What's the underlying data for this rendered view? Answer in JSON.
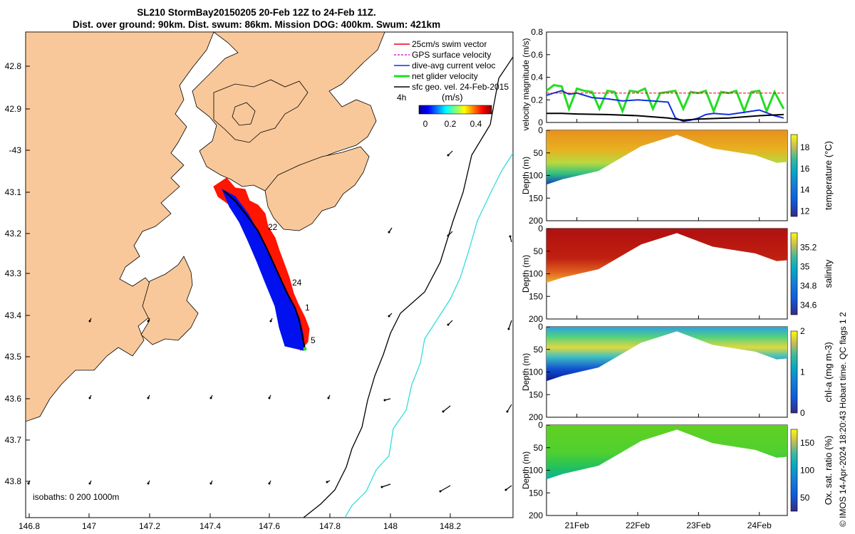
{
  "title_line1": "SL210 StormBay20150205 20-Feb 12Z to 24-Feb 11Z.",
  "title_line2": "Dist. over ground: 90km. Dist. swum: 86km. Mission DOG: 400km. Swum: 421km",
  "map": {
    "lat_ticks": [
      "42.8",
      "42.9",
      "-43",
      "43.1",
      "43.2",
      "43.3",
      "43.4",
      "43.5",
      "43.6",
      "43.7",
      "43.8"
    ],
    "lon_ticks": [
      "146.8",
      "147",
      "147.2",
      "147.4",
      "147.6",
      "147.8",
      "148",
      "148.2"
    ],
    "legend": [
      {
        "label": "25cm/s swim vector",
        "color": "#e8001c"
      },
      {
        "label": "GPS surface velocity",
        "color": "#e020e0"
      },
      {
        "label": "dive-avg current veloc",
        "color": "#1030e0"
      },
      {
        "label": "net glider velocity",
        "color": "#20e020"
      },
      {
        "label": "sfc geo. vel. 24-Feb-2015",
        "color": "#000000"
      }
    ],
    "colorbar_label": "(m/s)",
    "colorbar_ticks": [
      "0",
      "0.2",
      "0.4"
    ],
    "colorbar_tag": "4h",
    "day_labels": [
      "22",
      "24",
      "1",
      "5"
    ],
    "isobaths_label": "isobaths: 0   200  1000m",
    "colors": {
      "land": "#f9c89a",
      "sea": "#ffffff",
      "isobath200": "#000000",
      "isobath1000": "#33dddd",
      "swim": "#ff2000",
      "current": "#0010ee",
      "track": "#000000"
    }
  },
  "chart_data": [
    {
      "type": "line",
      "ylabel": "velocity magnitude (m/s)",
      "ylim": [
        0,
        0.8
      ],
      "yticks": [
        "0",
        "0.2",
        "0.4",
        "0.6",
        "0.8"
      ],
      "x_range_days": [
        "20-Feb 12Z",
        "24-Feb 11Z"
      ],
      "series": [
        {
          "color": "#22dd22",
          "x": [
            20.5,
            20.62,
            20.75,
            20.87,
            21.0,
            21.12,
            21.25,
            21.37,
            21.5,
            21.62,
            21.75,
            21.87,
            22.0,
            22.12,
            22.25,
            22.37,
            22.5,
            22.62,
            22.75,
            22.87,
            23.0,
            23.12,
            23.25,
            23.37,
            23.5,
            23.62,
            23.75,
            23.87,
            24.0,
            24.12,
            24.25,
            24.4
          ],
          "values": [
            0.28,
            0.33,
            0.32,
            0.12,
            0.3,
            0.28,
            0.27,
            0.12,
            0.28,
            0.27,
            0.1,
            0.28,
            0.27,
            0.3,
            0.12,
            0.26,
            0.27,
            0.28,
            0.12,
            0.27,
            0.26,
            0.28,
            0.1,
            0.27,
            0.26,
            0.28,
            0.1,
            0.27,
            0.28,
            0.1,
            0.27,
            0.12
          ]
        },
        {
          "color": "#1030e0",
          "x": [
            20.5,
            20.62,
            20.75,
            20.87,
            21.0,
            21.25,
            21.5,
            21.75,
            22.0,
            22.25,
            22.5,
            22.62,
            22.75,
            22.87,
            23.0,
            23.12,
            23.25,
            23.5,
            23.75,
            24.0,
            24.25,
            24.4
          ],
          "values": [
            0.24,
            0.26,
            0.28,
            0.25,
            0.26,
            0.22,
            0.21,
            0.19,
            0.2,
            0.19,
            0.18,
            0.04,
            0.01,
            0.02,
            0.04,
            0.07,
            0.08,
            0.07,
            0.09,
            0.11,
            0.06,
            0.04
          ]
        },
        {
          "color": "#000000",
          "x": [
            20.5,
            20.75,
            21.0,
            21.5,
            22.0,
            22.5,
            22.75,
            23.0,
            23.5,
            24.0,
            24.4
          ],
          "values": [
            0.08,
            0.08,
            0.075,
            0.07,
            0.06,
            0.04,
            0.02,
            0.03,
            0.04,
            0.06,
            0.07
          ]
        },
        {
          "color": "#e8001c",
          "x": [
            20.5,
            24.4
          ],
          "values": [
            0.26,
            0.26
          ]
        }
      ]
    },
    {
      "type": "heatmap",
      "ylabel": "Depth (m)",
      "ylim": [
        0,
        200
      ],
      "yticks": [
        "0",
        "50",
        "100",
        "150",
        "200"
      ],
      "colorbar_label": "temperature (°C)",
      "colorbar_ticks": [
        "12",
        "14",
        "16",
        "18"
      ],
      "clim": [
        11.5,
        19.2
      ],
      "xticks": [
        "21Feb",
        "22Feb",
        "23Feb",
        "24Feb"
      ]
    },
    {
      "type": "heatmap",
      "ylabel": "Depth (m)",
      "ylim": [
        0,
        200
      ],
      "yticks": [
        "0",
        "50",
        "100",
        "150",
        "200"
      ],
      "colorbar_label": "salinity",
      "colorbar_ticks": [
        "34.6",
        "34.8",
        "35",
        "35.2"
      ],
      "clim": [
        34.5,
        35.35
      ],
      "xticks": [
        "21Feb",
        "22Feb",
        "23Feb",
        "24Feb"
      ]
    },
    {
      "type": "heatmap",
      "ylabel": "Depth (m)",
      "ylim": [
        0,
        200
      ],
      "yticks": [
        "0",
        "50",
        "100",
        "150",
        "200"
      ],
      "colorbar_label": "chl-a (mg m-3)",
      "colorbar_ticks": [
        "0",
        "1",
        "2"
      ],
      "clim": [
        0,
        2
      ],
      "xticks": [
        "21Feb",
        "22Feb",
        "23Feb",
        "24Feb"
      ]
    },
    {
      "type": "heatmap",
      "ylabel": "Depth (m)",
      "ylim": [
        0,
        200
      ],
      "yticks": [
        "0",
        "50",
        "100",
        "150",
        "200"
      ],
      "colorbar_label": "Ox. sat. ratio (%)",
      "colorbar_ticks": [
        "50",
        "100",
        "150"
      ],
      "clim": [
        25,
        175
      ],
      "xticks": [
        "21Feb",
        "22Feb",
        "23Feb",
        "24Feb"
      ]
    }
  ],
  "credit": "© IMOS 14-Apr-2024 18:20:43 Hobart time. QC flags 1  2"
}
